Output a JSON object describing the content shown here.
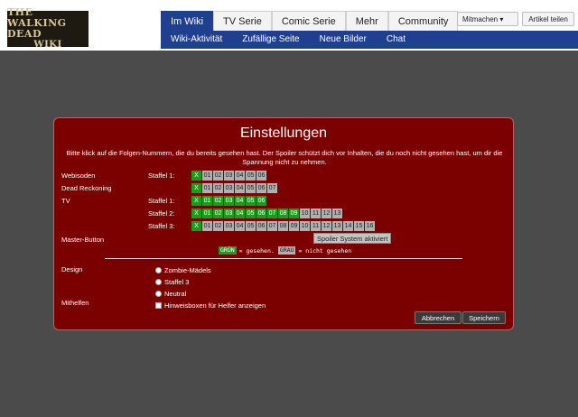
{
  "logo": {
    "line1": "THE WALKING DEAD",
    "line2": "WIKI"
  },
  "nav": {
    "tabs": [
      "Im Wiki",
      "TV Serie",
      "Comic Serie",
      "Mehr",
      "Community"
    ],
    "subnav": [
      "Wiki-Aktivität",
      "Zufällige Seite",
      "Neue Bilder",
      "Chat"
    ]
  },
  "header_buttons": {
    "mitmachen": "Mitmachen ▾",
    "artikel_teilen": "Artikel teilen"
  },
  "dialog": {
    "title": "Einstellungen",
    "intro": "Bitte klick auf die Folgen-Nummern, die du bereits gesehen hast. Der Spoiler schützt dich vor Inhalten, die du noch nicht gesehen hast, um dir die Spannung nicht zu nehmen.",
    "sections": {
      "webisoden": "Webisoden",
      "dead_reckoning": "Dead Reckoning",
      "tv": "TV",
      "master": "Master-Button",
      "design": "Design",
      "mithelfen": "Mithelfen"
    },
    "staffel_labels": {
      "s1": "Staffel 1:",
      "s2": "Staffel 2:",
      "s3": "Staffel 3:"
    },
    "webisoden_eps": [
      "X",
      "01",
      "02",
      "03",
      "04",
      "05",
      "06"
    ],
    "dead_reckoning_eps": [
      "X",
      "01",
      "02",
      "03",
      "04",
      "05",
      "06",
      "07"
    ],
    "tv_s1_eps": [
      "X",
      "01",
      "02",
      "03",
      "04",
      "05",
      "06"
    ],
    "tv_s2_eps": [
      "X",
      "01",
      "02",
      "03",
      "04",
      "05",
      "06",
      "07",
      "08",
      "09",
      "10",
      "11",
      "12",
      "13"
    ],
    "tv_s3_eps": [
      "X",
      "01",
      "02",
      "03",
      "04",
      "05",
      "06",
      "07",
      "08",
      "09",
      "10",
      "11",
      "12",
      "13",
      "14",
      "15",
      "16"
    ],
    "master_button": "Spoiler System aktiviert",
    "legend": {
      "green": "GRÜN",
      "seen": "= gesehen.",
      "gray": "GRAU",
      "unseen": "= nicht gesehen"
    },
    "design_options": [
      "Zombie-Mädels",
      "Staffel 3",
      "Neutral"
    ],
    "helper_option": "Hinweisboxen für Helfer anzeigen",
    "buttons": {
      "cancel": "Abbrechen",
      "save": "Speichern"
    },
    "colors": {
      "seen": "#15a015",
      "unseen": "#b0b0b0",
      "background": "#7b0000"
    }
  }
}
